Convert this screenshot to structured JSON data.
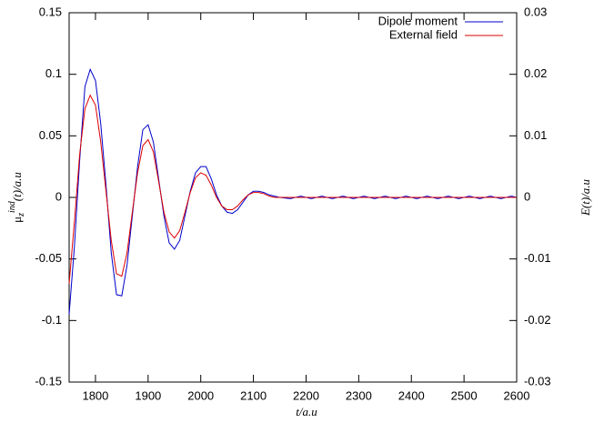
{
  "chart_data": {
    "type": "line",
    "xlabel": "t/a.u",
    "ylabel": {
      "base": "μ",
      "sub": "z",
      "sup": "ind",
      "rest": "(t)/a.u"
    },
    "y2label": "E(t)/a.u",
    "x": [
      1750,
      1760,
      1770,
      1780,
      1790,
      1800,
      1810,
      1820,
      1830,
      1840,
      1850,
      1860,
      1870,
      1880,
      1890,
      1900,
      1910,
      1920,
      1930,
      1940,
      1950,
      1960,
      1970,
      1980,
      1990,
      2000,
      2010,
      2020,
      2030,
      2040,
      2050,
      2060,
      2070,
      2080,
      2090,
      2100,
      2110,
      2120,
      2130,
      2140,
      2150,
      2170,
      2190,
      2210,
      2230,
      2250,
      2270,
      2290,
      2310,
      2330,
      2350,
      2370,
      2390,
      2410,
      2430,
      2450,
      2470,
      2490,
      2510,
      2530,
      2550,
      2570,
      2590,
      2600
    ],
    "series": [
      {
        "name": "Dipole moment",
        "color": "#0000cc",
        "axis": "y",
        "values": [
          -0.095,
          -0.04,
          0.03,
          0.09,
          0.104,
          0.095,
          0.06,
          0.01,
          -0.045,
          -0.079,
          -0.08,
          -0.055,
          -0.015,
          0.025,
          0.055,
          0.059,
          0.045,
          0.015,
          -0.015,
          -0.037,
          -0.042,
          -0.035,
          -0.015,
          0.005,
          0.02,
          0.025,
          0.025,
          0.015,
          0.002,
          -0.007,
          -0.012,
          -0.013,
          -0.01,
          -0.004,
          0.002,
          0.005,
          0.005,
          0.004,
          0.002,
          0.001,
          0,
          -0.001,
          0.001,
          -0.001,
          0.001,
          -0.001,
          0.001,
          -0.001,
          0.001,
          -0.001,
          0.001,
          -0.001,
          0.001,
          -0.001,
          0.001,
          -0.001,
          0.001,
          -0.001,
          0.001,
          -0.001,
          0.001,
          -0.001,
          0.001,
          0
        ]
      },
      {
        "name": "External field",
        "color": "#dd0000",
        "axis": "y2",
        "values": [
          -0.014,
          -0.004,
          0.007,
          0.0144,
          0.0166,
          0.015,
          0.009,
          0.001,
          -0.007,
          -0.0124,
          -0.0128,
          -0.009,
          -0.0024,
          0.004,
          0.0084,
          0.0094,
          0.0074,
          0.0026,
          -0.0024,
          -0.0056,
          -0.0066,
          -0.0054,
          -0.0024,
          0.0008,
          0.0032,
          0.004,
          0.0036,
          0.002,
          0,
          -0.0014,
          -0.002,
          -0.002,
          -0.0014,
          -0.0004,
          0.0004,
          0.0008,
          0.0008,
          0.0006,
          0.0002,
          0,
          0,
          0,
          0,
          0,
          0,
          0,
          0,
          0,
          0,
          0,
          0,
          0,
          0,
          0,
          0,
          0,
          0,
          0,
          0,
          0,
          0,
          0,
          0,
          0
        ]
      }
    ],
    "xlim": [
      1750,
      2600
    ],
    "xticks": [
      1800,
      1900,
      2000,
      2100,
      2200,
      2300,
      2400,
      2500,
      2600
    ],
    "ylim": [
      -0.15,
      0.15
    ],
    "yticks": [
      -0.15,
      -0.1,
      -0.05,
      0,
      0.05,
      0.1,
      0.15
    ],
    "y2lim": [
      -0.03,
      0.03
    ],
    "y2ticks": [
      -0.03,
      -0.02,
      -0.01,
      0,
      0.01,
      0.02,
      0.03
    ],
    "legend": "top-right",
    "grid": false
  }
}
